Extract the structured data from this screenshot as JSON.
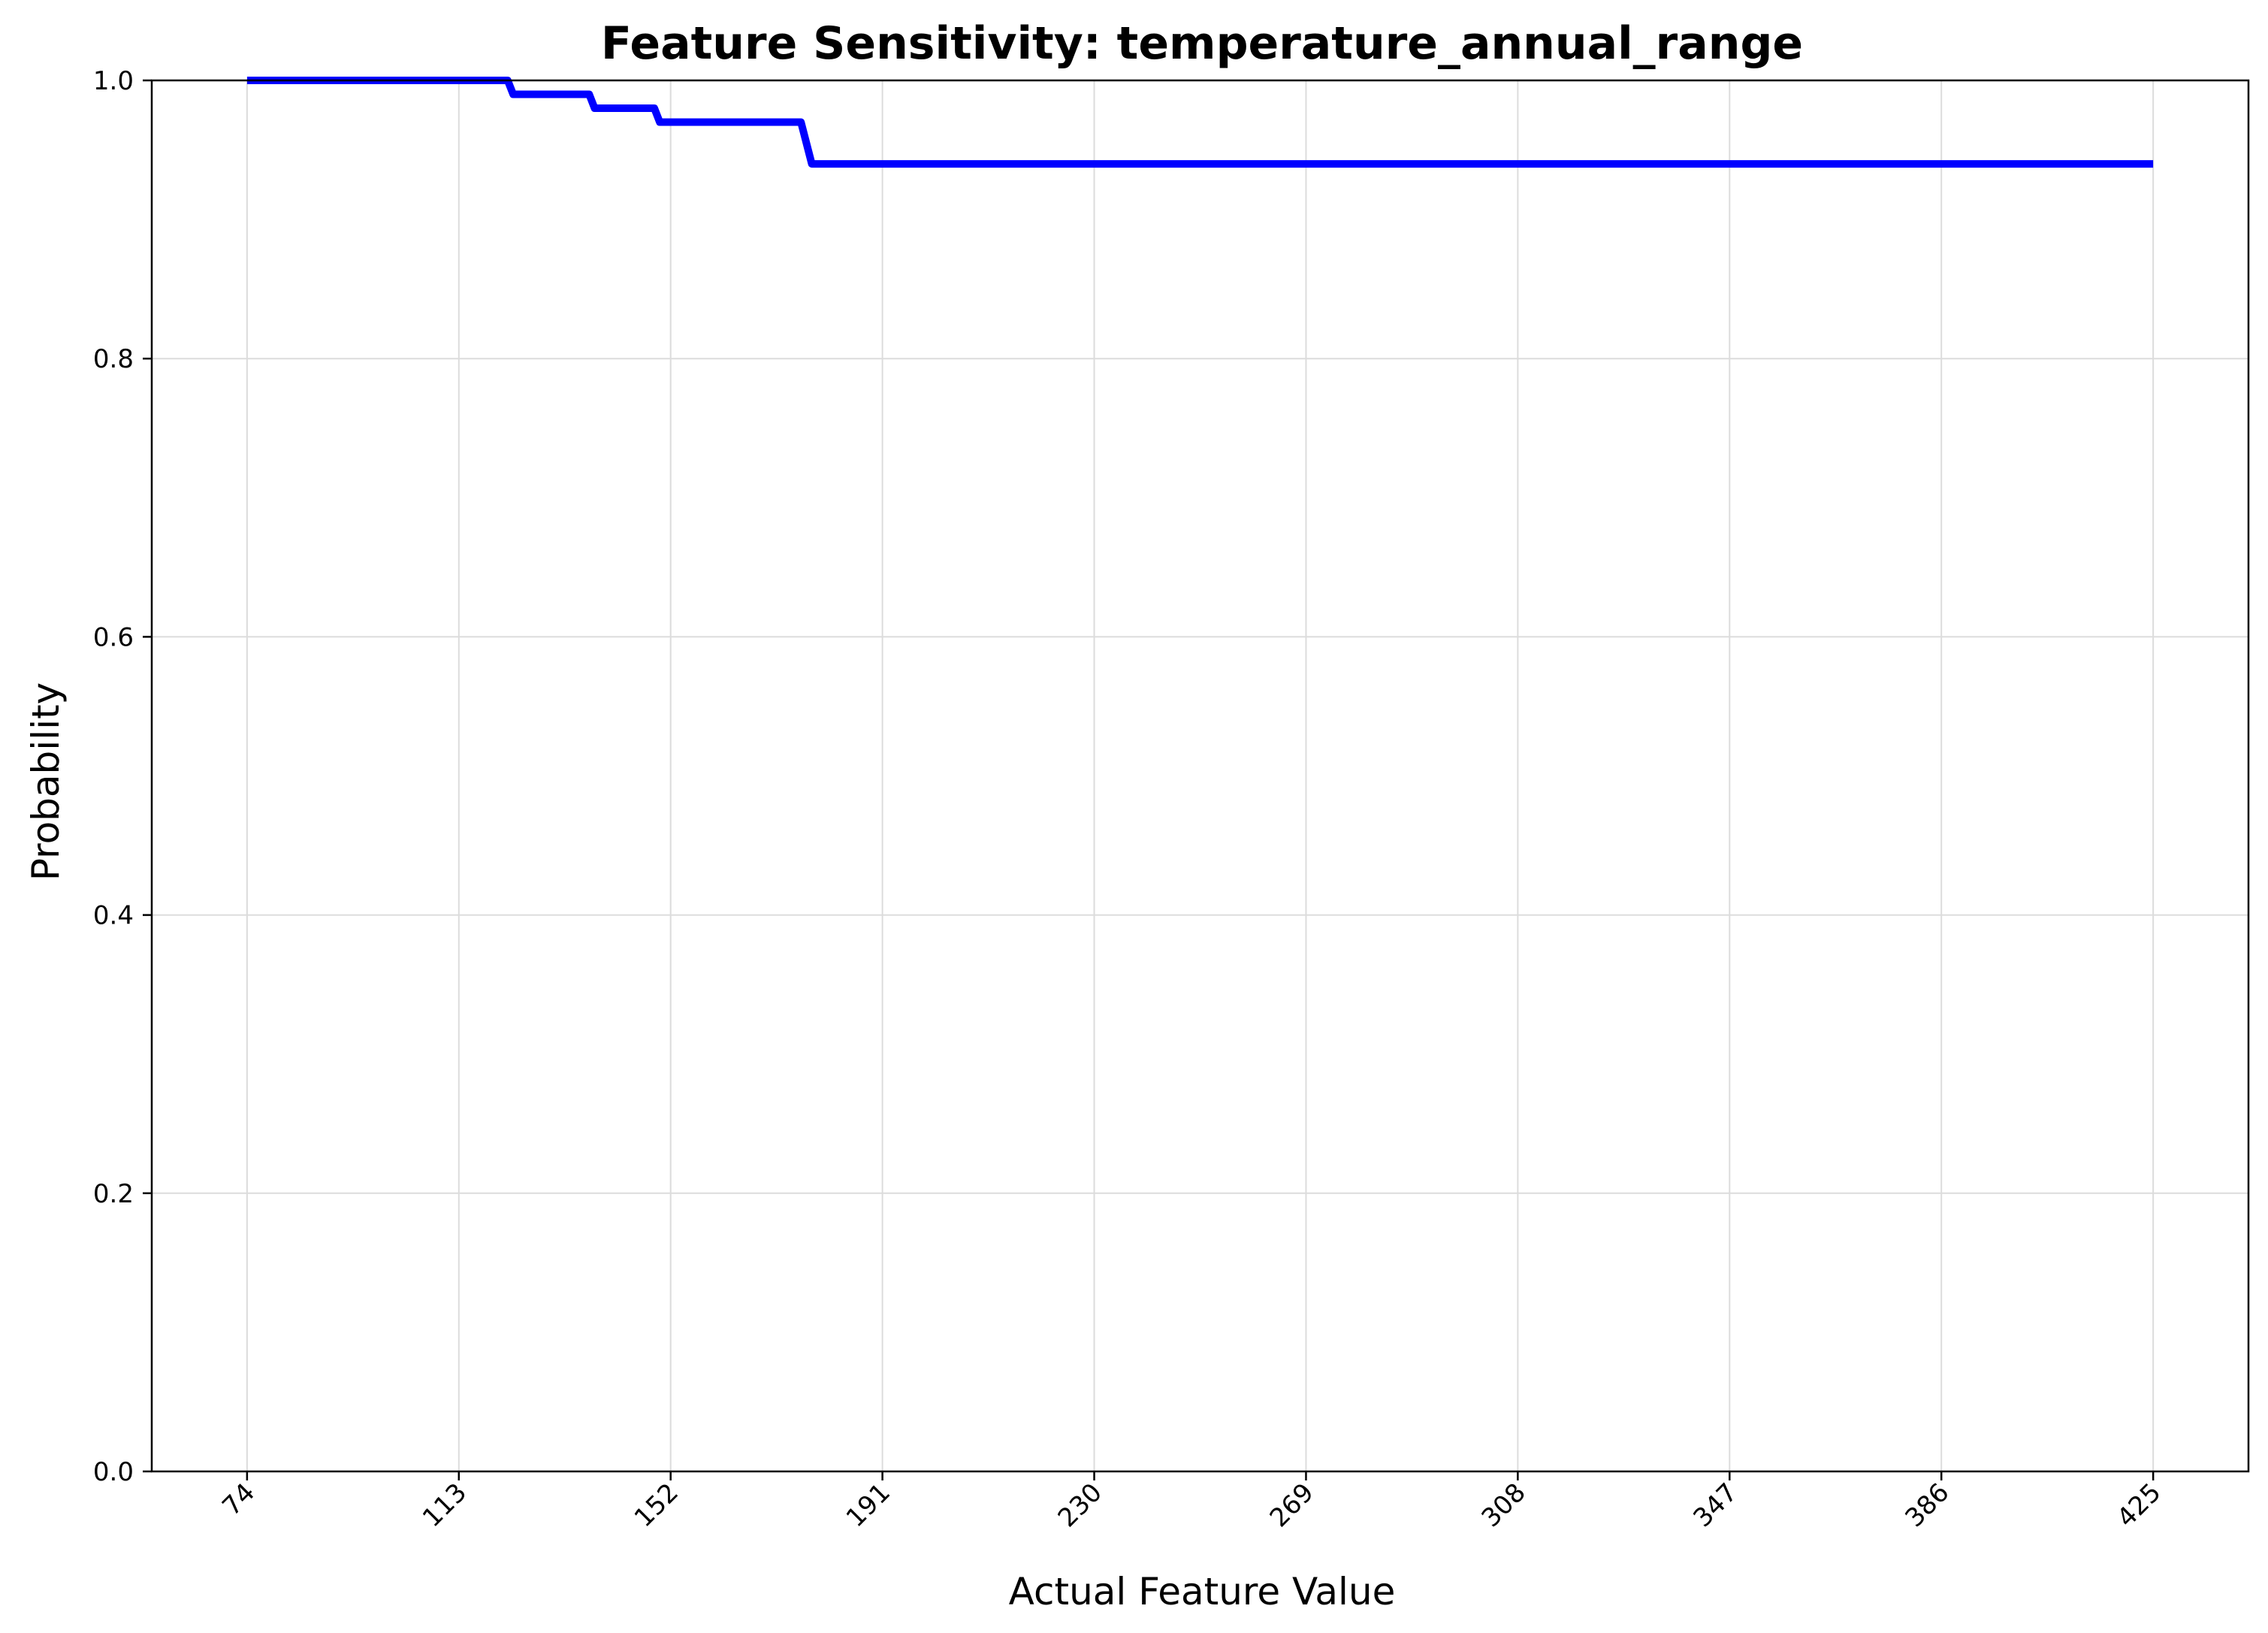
{
  "chart_data": {
    "type": "line",
    "title": "Feature Sensitivity: temperature_annual_range",
    "xlabel": "Actual Feature Value",
    "ylabel": "Probability",
    "xlim": [
      56.45,
      442.55
    ],
    "ylim": [
      0.0,
      1.0
    ],
    "x_ticks": [
      74,
      113,
      152,
      191,
      230,
      269,
      308,
      347,
      386,
      425
    ],
    "x_tick_labels": [
      "74",
      "113",
      "152",
      "191",
      "230",
      "269",
      "308",
      "347",
      "386",
      "425"
    ],
    "y_ticks": [
      0.0,
      0.2,
      0.4,
      0.6,
      0.8,
      1.0
    ],
    "y_tick_labels": [
      "0.0",
      "0.2",
      "0.4",
      "0.6",
      "0.8",
      "1.0"
    ],
    "grid": true,
    "series": [
      {
        "color": "#0000ff",
        "x": [
          74,
          122,
          123,
          137,
          138,
          149,
          150,
          176,
          178,
          425
        ],
        "y": [
          1.0,
          1.0,
          0.99,
          0.99,
          0.98,
          0.98,
          0.97,
          0.97,
          0.94,
          0.94
        ]
      }
    ]
  }
}
